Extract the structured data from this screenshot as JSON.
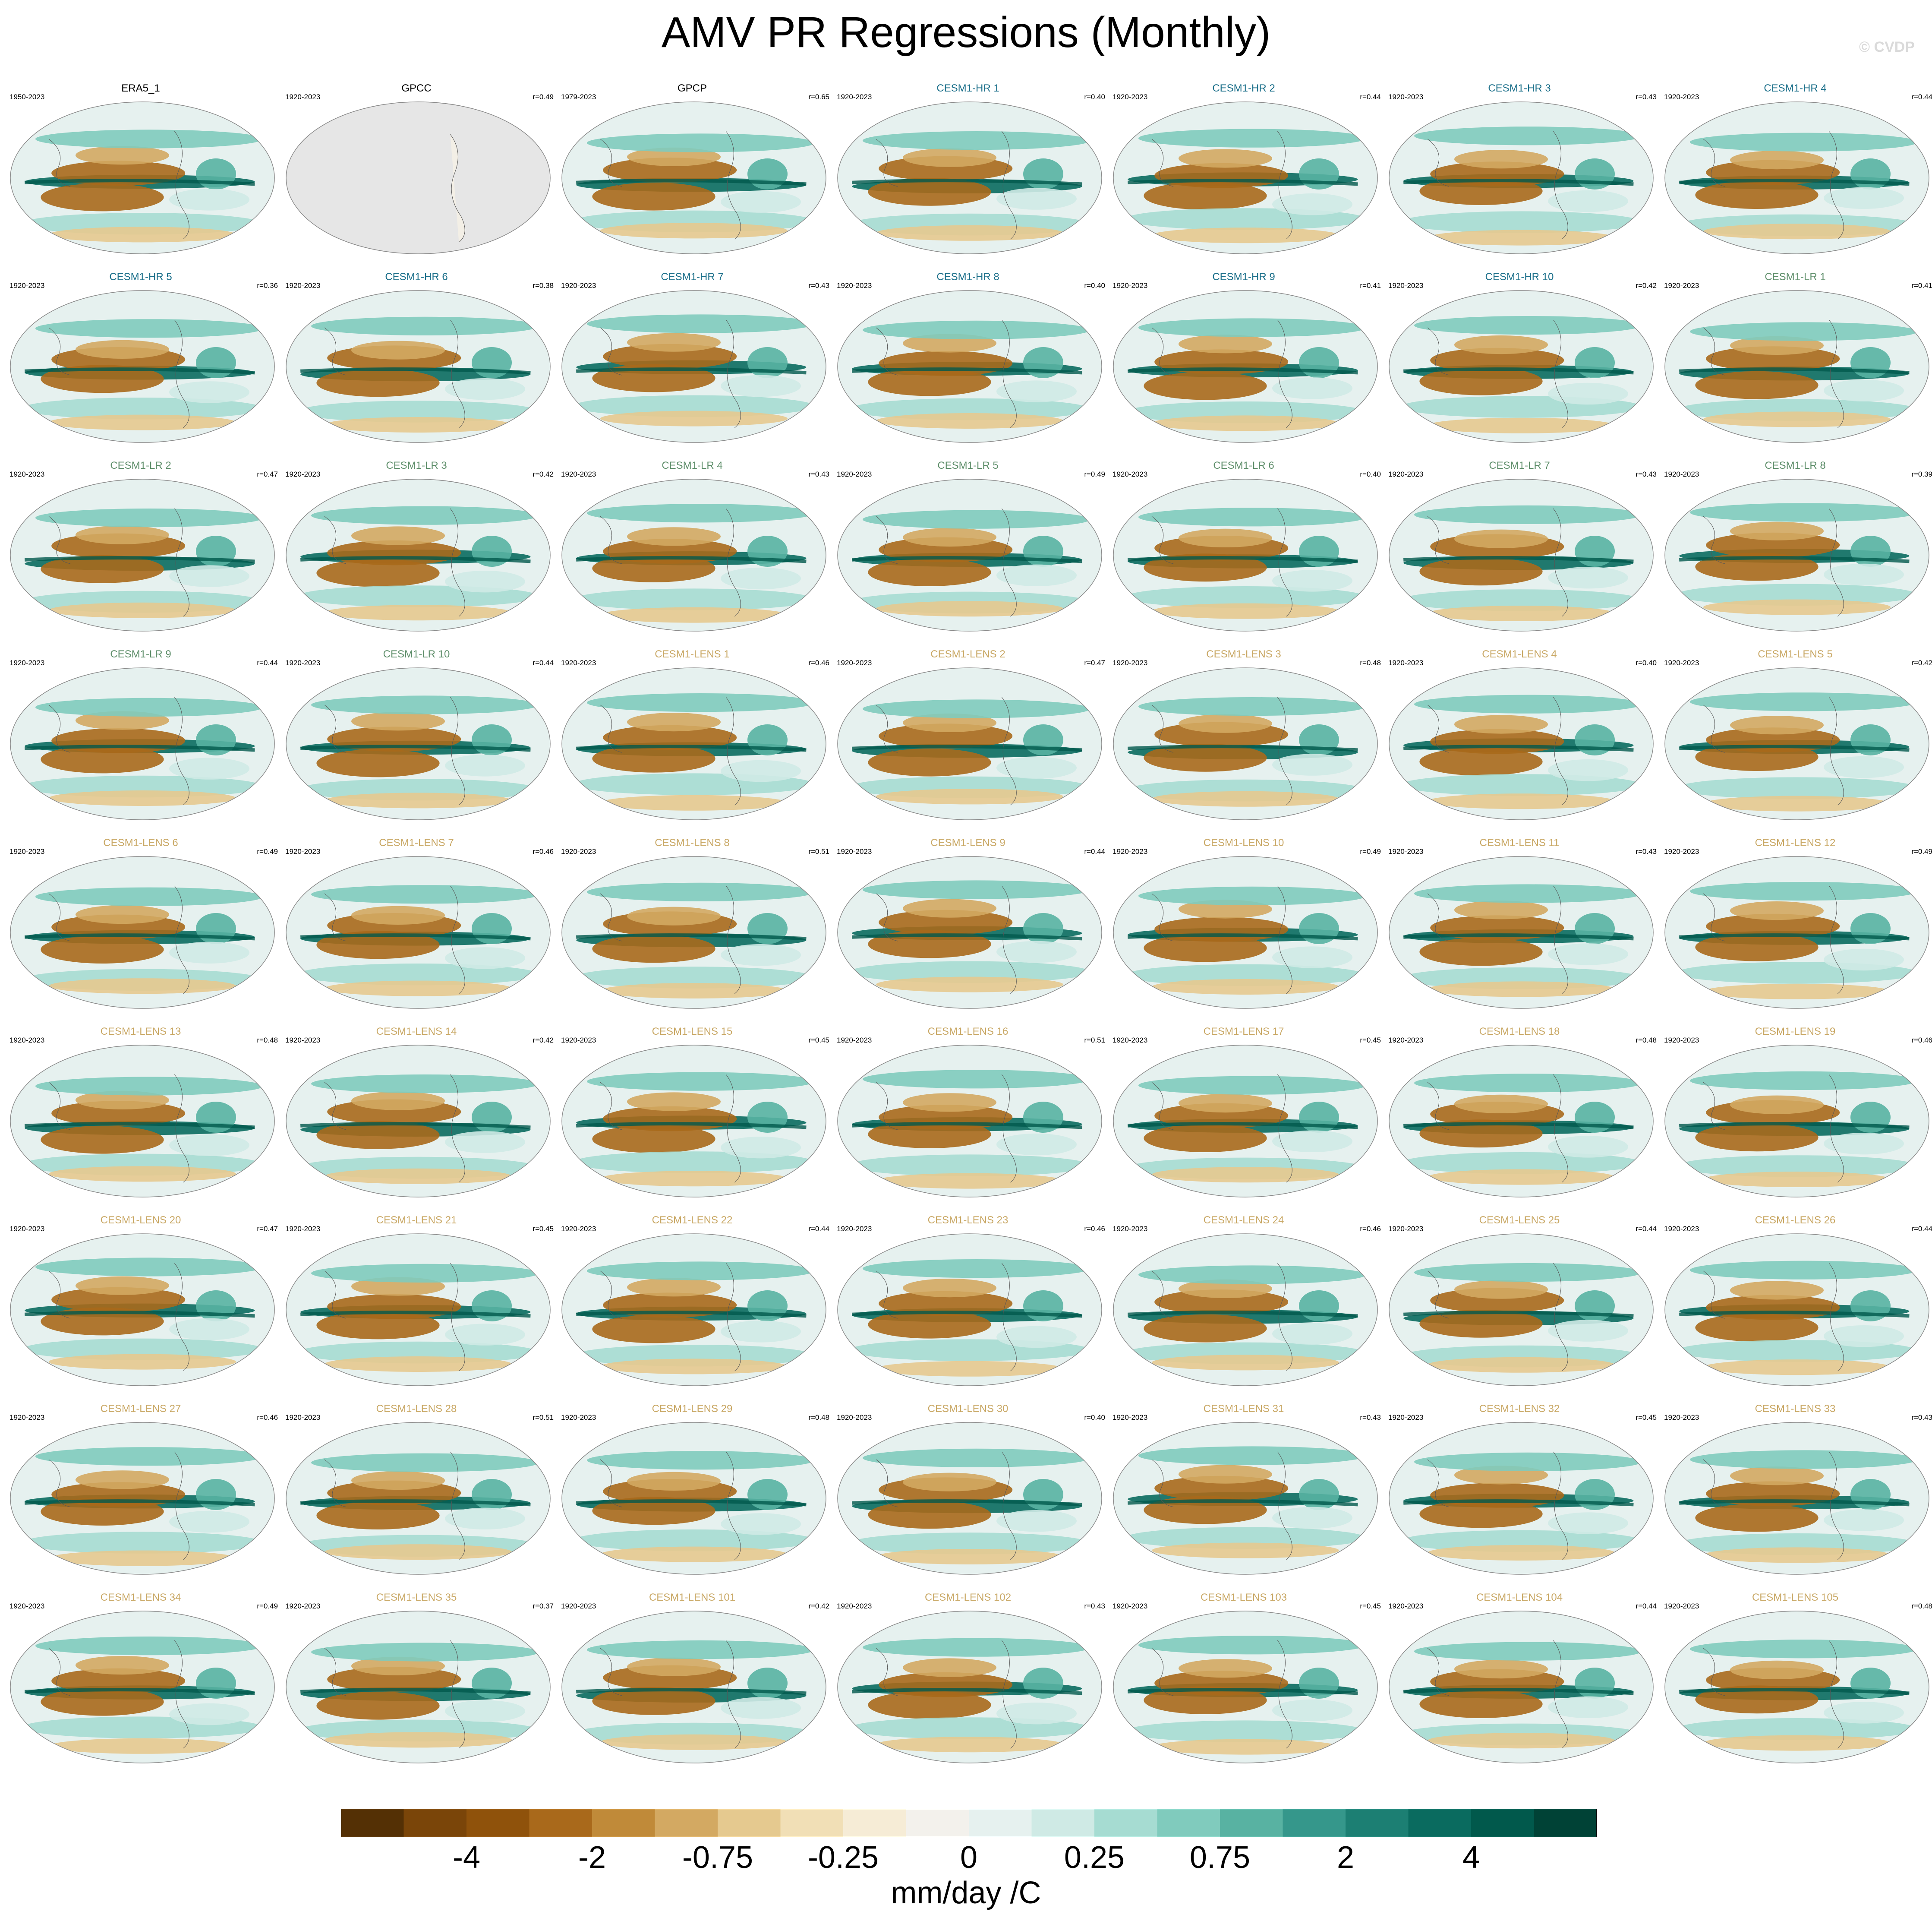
{
  "title": "AMV PR Regressions (Monthly)",
  "watermark": "© CVDP",
  "colors": {
    "obs_title": "#000000",
    "cesm1_hr_title": "#1b6f8a",
    "cesm1_lr_title": "#5f8f6b",
    "cesm1_lens_title": "#c9a865",
    "land_missing": "#e6e6e6",
    "coast": "#555555"
  },
  "chart_data": {
    "type": "heatmap",
    "projection": "Robinson (global, Pacific-centered)",
    "variable": "precipitation regression onto AMV index",
    "grid": {
      "rows": 9,
      "cols": 7
    },
    "panels": [
      {
        "title": "ERA5_1",
        "years": "1950-2023",
        "r": "",
        "group": "obs"
      },
      {
        "title": "GPCC",
        "years": "1920-2023",
        "r": "r=0.49",
        "group": "obs",
        "land_only": true
      },
      {
        "title": "GPCP",
        "years": "1979-2023",
        "r": "r=0.65",
        "group": "obs"
      },
      {
        "title": "CESM1-HR 1",
        "years": "1920-2023",
        "r": "r=0.40",
        "group": "hr"
      },
      {
        "title": "CESM1-HR 2",
        "years": "1920-2023",
        "r": "r=0.44",
        "group": "hr"
      },
      {
        "title": "CESM1-HR 3",
        "years": "1920-2023",
        "r": "r=0.43",
        "group": "hr"
      },
      {
        "title": "CESM1-HR 4",
        "years": "1920-2023",
        "r": "r=0.44",
        "group": "hr"
      },
      {
        "title": "CESM1-HR 5",
        "years": "1920-2023",
        "r": "r=0.36",
        "group": "hr"
      },
      {
        "title": "CESM1-HR 6",
        "years": "1920-2023",
        "r": "r=0.38",
        "group": "hr"
      },
      {
        "title": "CESM1-HR 7",
        "years": "1920-2023",
        "r": "r=0.43",
        "group": "hr"
      },
      {
        "title": "CESM1-HR 8",
        "years": "1920-2023",
        "r": "r=0.40",
        "group": "hr"
      },
      {
        "title": "CESM1-HR 9",
        "years": "1920-2023",
        "r": "r=0.41",
        "group": "hr"
      },
      {
        "title": "CESM1-HR 10",
        "years": "1920-2023",
        "r": "r=0.42",
        "group": "hr"
      },
      {
        "title": "CESM1-LR 1",
        "years": "1920-2023",
        "r": "r=0.41",
        "group": "lr"
      },
      {
        "title": "CESM1-LR 2",
        "years": "1920-2023",
        "r": "r=0.47",
        "group": "lr"
      },
      {
        "title": "CESM1-LR 3",
        "years": "1920-2023",
        "r": "r=0.42",
        "group": "lr"
      },
      {
        "title": "CESM1-LR 4",
        "years": "1920-2023",
        "r": "r=0.43",
        "group": "lr"
      },
      {
        "title": "CESM1-LR 5",
        "years": "1920-2023",
        "r": "r=0.49",
        "group": "lr"
      },
      {
        "title": "CESM1-LR 6",
        "years": "1920-2023",
        "r": "r=0.40",
        "group": "lr"
      },
      {
        "title": "CESM1-LR 7",
        "years": "1920-2023",
        "r": "r=0.43",
        "group": "lr"
      },
      {
        "title": "CESM1-LR 8",
        "years": "1920-2023",
        "r": "r=0.39",
        "group": "lr"
      },
      {
        "title": "CESM1-LR 9",
        "years": "1920-2023",
        "r": "r=0.44",
        "group": "lr"
      },
      {
        "title": "CESM1-LR 10",
        "years": "1920-2023",
        "r": "r=0.44",
        "group": "lr"
      },
      {
        "title": "CESM1-LENS 1",
        "years": "1920-2023",
        "r": "r=0.46",
        "group": "lens"
      },
      {
        "title": "CESM1-LENS 2",
        "years": "1920-2023",
        "r": "r=0.47",
        "group": "lens"
      },
      {
        "title": "CESM1-LENS 3",
        "years": "1920-2023",
        "r": "r=0.48",
        "group": "lens"
      },
      {
        "title": "CESM1-LENS 4",
        "years": "1920-2023",
        "r": "r=0.40",
        "group": "lens"
      },
      {
        "title": "CESM1-LENS 5",
        "years": "1920-2023",
        "r": "r=0.42",
        "group": "lens"
      },
      {
        "title": "CESM1-LENS 6",
        "years": "1920-2023",
        "r": "r=0.49",
        "group": "lens"
      },
      {
        "title": "CESM1-LENS 7",
        "years": "1920-2023",
        "r": "r=0.46",
        "group": "lens"
      },
      {
        "title": "CESM1-LENS 8",
        "years": "1920-2023",
        "r": "r=0.51",
        "group": "lens"
      },
      {
        "title": "CESM1-LENS 9",
        "years": "1920-2023",
        "r": "r=0.44",
        "group": "lens"
      },
      {
        "title": "CESM1-LENS 10",
        "years": "1920-2023",
        "r": "r=0.49",
        "group": "lens"
      },
      {
        "title": "CESM1-LENS 11",
        "years": "1920-2023",
        "r": "r=0.43",
        "group": "lens"
      },
      {
        "title": "CESM1-LENS 12",
        "years": "1920-2023",
        "r": "r=0.49",
        "group": "lens"
      },
      {
        "title": "CESM1-LENS 13",
        "years": "1920-2023",
        "r": "r=0.48",
        "group": "lens"
      },
      {
        "title": "CESM1-LENS 14",
        "years": "1920-2023",
        "r": "r=0.42",
        "group": "lens"
      },
      {
        "title": "CESM1-LENS 15",
        "years": "1920-2023",
        "r": "r=0.45",
        "group": "lens"
      },
      {
        "title": "CESM1-LENS 16",
        "years": "1920-2023",
        "r": "r=0.51",
        "group": "lens"
      },
      {
        "title": "CESM1-LENS 17",
        "years": "1920-2023",
        "r": "r=0.45",
        "group": "lens"
      },
      {
        "title": "CESM1-LENS 18",
        "years": "1920-2023",
        "r": "r=0.48",
        "group": "lens"
      },
      {
        "title": "CESM1-LENS 19",
        "years": "1920-2023",
        "r": "r=0.46",
        "group": "lens"
      },
      {
        "title": "CESM1-LENS 20",
        "years": "1920-2023",
        "r": "r=0.47",
        "group": "lens"
      },
      {
        "title": "CESM1-LENS 21",
        "years": "1920-2023",
        "r": "r=0.45",
        "group": "lens"
      },
      {
        "title": "CESM1-LENS 22",
        "years": "1920-2023",
        "r": "r=0.44",
        "group": "lens"
      },
      {
        "title": "CESM1-LENS 23",
        "years": "1920-2023",
        "r": "r=0.46",
        "group": "lens"
      },
      {
        "title": "CESM1-LENS 24",
        "years": "1920-2023",
        "r": "r=0.46",
        "group": "lens"
      },
      {
        "title": "CESM1-LENS 25",
        "years": "1920-2023",
        "r": "r=0.44",
        "group": "lens"
      },
      {
        "title": "CESM1-LENS 26",
        "years": "1920-2023",
        "r": "r=0.44",
        "group": "lens"
      },
      {
        "title": "CESM1-LENS 27",
        "years": "1920-2023",
        "r": "r=0.46",
        "group": "lens"
      },
      {
        "title": "CESM1-LENS 28",
        "years": "1920-2023",
        "r": "r=0.51",
        "group": "lens"
      },
      {
        "title": "CESM1-LENS 29",
        "years": "1920-2023",
        "r": "r=0.48",
        "group": "lens"
      },
      {
        "title": "CESM1-LENS 30",
        "years": "1920-2023",
        "r": "r=0.40",
        "group": "lens"
      },
      {
        "title": "CESM1-LENS 31",
        "years": "1920-2023",
        "r": "r=0.43",
        "group": "lens"
      },
      {
        "title": "CESM1-LENS 32",
        "years": "1920-2023",
        "r": "r=0.45",
        "group": "lens"
      },
      {
        "title": "CESM1-LENS 33",
        "years": "1920-2023",
        "r": "r=0.43",
        "group": "lens"
      },
      {
        "title": "CESM1-LENS 34",
        "years": "1920-2023",
        "r": "r=0.49",
        "group": "lens"
      },
      {
        "title": "CESM1-LENS 35",
        "years": "1920-2023",
        "r": "r=0.37",
        "group": "lens"
      },
      {
        "title": "CESM1-LENS 101",
        "years": "1920-2023",
        "r": "r=0.42",
        "group": "lens"
      },
      {
        "title": "CESM1-LENS 102",
        "years": "1920-2023",
        "r": "r=0.43",
        "group": "lens"
      },
      {
        "title": "CESM1-LENS 103",
        "years": "1920-2023",
        "r": "r=0.45",
        "group": "lens"
      },
      {
        "title": "CESM1-LENS 104",
        "years": "1920-2023",
        "r": "r=0.44",
        "group": "lens"
      },
      {
        "title": "CESM1-LENS 105",
        "years": "1920-2023",
        "r": "r=0.48",
        "group": "lens"
      }
    ],
    "colorbar": {
      "label": "mm/day /C",
      "tick_labels": [
        "-4",
        "-2",
        "-0.75",
        "-0.25",
        "0",
        "0.25",
        "0.75",
        "2",
        "4"
      ],
      "colors": [
        "#543005",
        "#7a4509",
        "#8f520b",
        "#a9691b",
        "#c08a39",
        "#d3a962",
        "#e5c98f",
        "#f1dfb6",
        "#f6ecd6",
        "#f3f1ec",
        "#e6f1ef",
        "#cfeae5",
        "#a6dcd2",
        "#80cbbd",
        "#58b2a2",
        "#35978b",
        "#1c7f73",
        "#0a6b5f",
        "#01594c",
        "#004236"
      ]
    }
  }
}
